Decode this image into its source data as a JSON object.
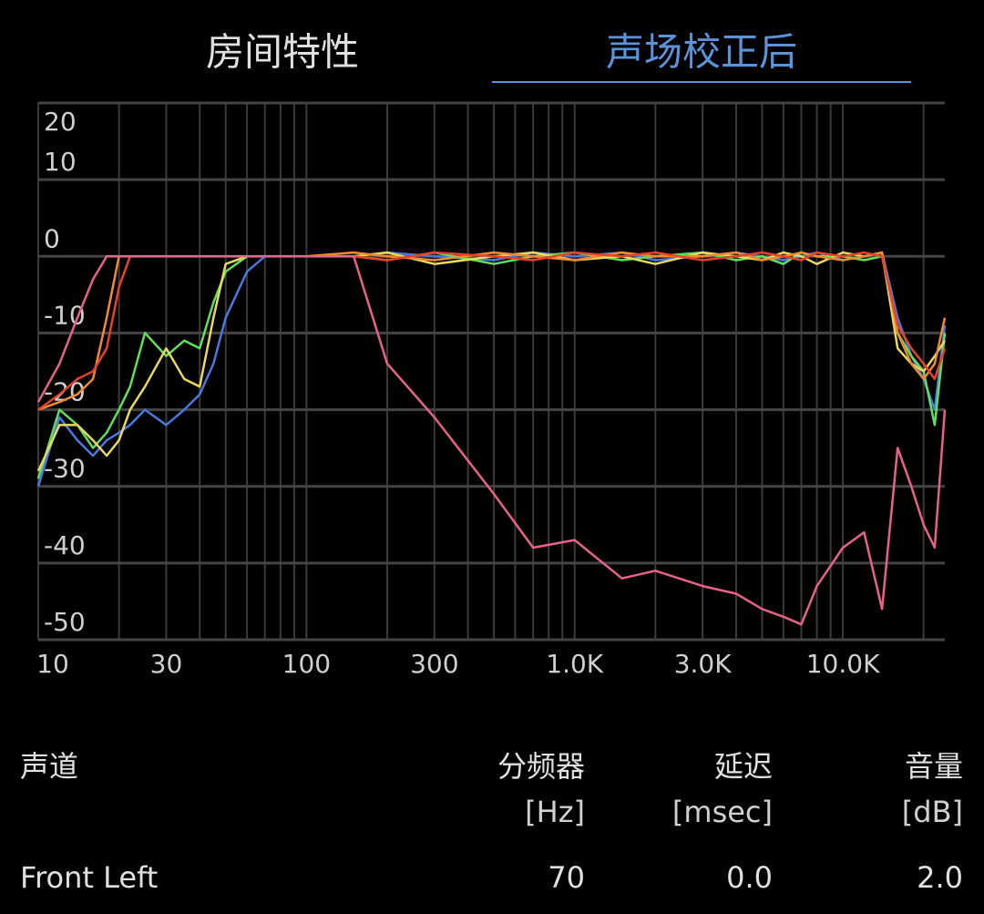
{
  "tabs": [
    {
      "label": "房间特性",
      "active": false
    },
    {
      "label": "声场校正后",
      "active": true
    }
  ],
  "chart_data": {
    "type": "line",
    "log_x": true,
    "grid": true,
    "x": [
      10,
      12,
      14,
      16,
      18,
      20,
      22,
      25,
      30,
      35,
      40,
      45,
      50,
      60,
      70,
      80,
      100,
      150,
      200,
      300,
      500,
      700,
      1000,
      1500,
      2000,
      3000,
      4000,
      5000,
      6000,
      7000,
      8000,
      10000,
      12000,
      14000,
      16000,
      18000,
      20000,
      22000,
      24000
    ],
    "series": [
      {
        "color": "#4a78e0",
        "values": [
          -30,
          -21,
          -24,
          -26,
          -24,
          -23,
          -22,
          -20,
          -22,
          -20,
          -18,
          -14,
          -8,
          -2,
          0,
          0,
          0,
          0,
          0.5,
          0,
          -0.5,
          0.5,
          0,
          0.5,
          -0.5,
          0,
          0.5,
          0,
          -0.5,
          0,
          0.5,
          -0.5,
          0,
          0.5,
          -8,
          -13,
          -16,
          -20,
          -9
        ]
      },
      {
        "color": "#5ee05a",
        "values": [
          -29,
          -20,
          -22,
          -25,
          -23,
          -20,
          -17,
          -10,
          -13,
          -11,
          -12,
          -6,
          -2,
          0,
          0,
          0,
          0,
          0,
          -0.5,
          0.5,
          -1,
          0,
          0.5,
          -0.5,
          0,
          0.5,
          -0.5,
          0,
          -1,
          0.5,
          0,
          0,
          -0.5,
          0,
          -10,
          -13,
          -15,
          -22,
          -10
        ]
      },
      {
        "color": "#e8d860",
        "values": [
          -28,
          -22,
          -22,
          -24,
          -26,
          -24,
          -20,
          -17,
          -12,
          -16,
          -17,
          -8,
          -1,
          0,
          0,
          0,
          0,
          0,
          0.5,
          -1,
          0,
          0.5,
          -0.5,
          0,
          -1,
          0.5,
          0,
          -0.5,
          0.5,
          0,
          -1,
          0.5,
          0,
          0.5,
          -12,
          -14,
          -15,
          -13,
          -11
        ]
      },
      {
        "color": "#f08a30",
        "values": [
          -20,
          -19,
          -18,
          -16,
          -8,
          0,
          0,
          0,
          0,
          0,
          0,
          0,
          0,
          0,
          0,
          0,
          0,
          0.5,
          0,
          -0.5,
          0.5,
          0,
          -0.5,
          0.5,
          0,
          0,
          0.5,
          -0.5,
          0,
          0.5,
          0,
          -0.5,
          0,
          0.5,
          -10,
          -14,
          -16,
          -14,
          -8
        ]
      },
      {
        "color": "#e8402a",
        "values": [
          -20,
          -18,
          -16,
          -15,
          -12,
          -4,
          0,
          0,
          0,
          0,
          0,
          0,
          0,
          0,
          0,
          0,
          0,
          0,
          -0.5,
          0.5,
          0,
          -0.5,
          0.5,
          0,
          0.5,
          -0.5,
          0,
          0.5,
          0,
          -0.5,
          0.5,
          0,
          0.5,
          0,
          -9,
          -12,
          -14,
          -16,
          -12
        ]
      },
      {
        "color": "#e8608c",
        "values": [
          -19,
          -14,
          -8,
          -3,
          0,
          0,
          0,
          0,
          0,
          0,
          0,
          0,
          0,
          0,
          0,
          0,
          0,
          0,
          -14,
          -21,
          -31,
          -38,
          -37,
          -42,
          -41,
          -43,
          -44,
          -46,
          -47,
          -48,
          -43,
          -38,
          -36,
          -46,
          -25,
          -30,
          -35,
          -38,
          -20
        ]
      }
    ],
    "xlim": [
      10,
      24000
    ],
    "ylim": [
      -50,
      20
    ],
    "xticks": [
      10,
      30,
      100,
      300,
      {
        "value": 1000,
        "label": "1.0K"
      },
      {
        "value": 3000,
        "label": "3.0K"
      },
      {
        "value": 10000,
        "label": "10.0K"
      }
    ],
    "yticks": [
      -50,
      -40,
      -30,
      -20,
      -10,
      0,
      10,
      20
    ],
    "x_grid": [
      10,
      20,
      30,
      40,
      50,
      60,
      70,
      80,
      90,
      100,
      200,
      300,
      400,
      500,
      600,
      700,
      800,
      900,
      1000,
      2000,
      3000,
      4000,
      5000,
      6000,
      7000,
      8000,
      9000,
      10000,
      20000
    ]
  },
  "table": {
    "columns": [
      {
        "name": "声道"
      },
      {
        "name": "分频器",
        "unit": "[Hz]"
      },
      {
        "name": "延迟",
        "unit": "[msec]"
      },
      {
        "name": "音量",
        "unit": "[dB]"
      }
    ],
    "rows": [
      [
        "Front Left",
        "70",
        "0.0",
        "2.0"
      ]
    ]
  }
}
